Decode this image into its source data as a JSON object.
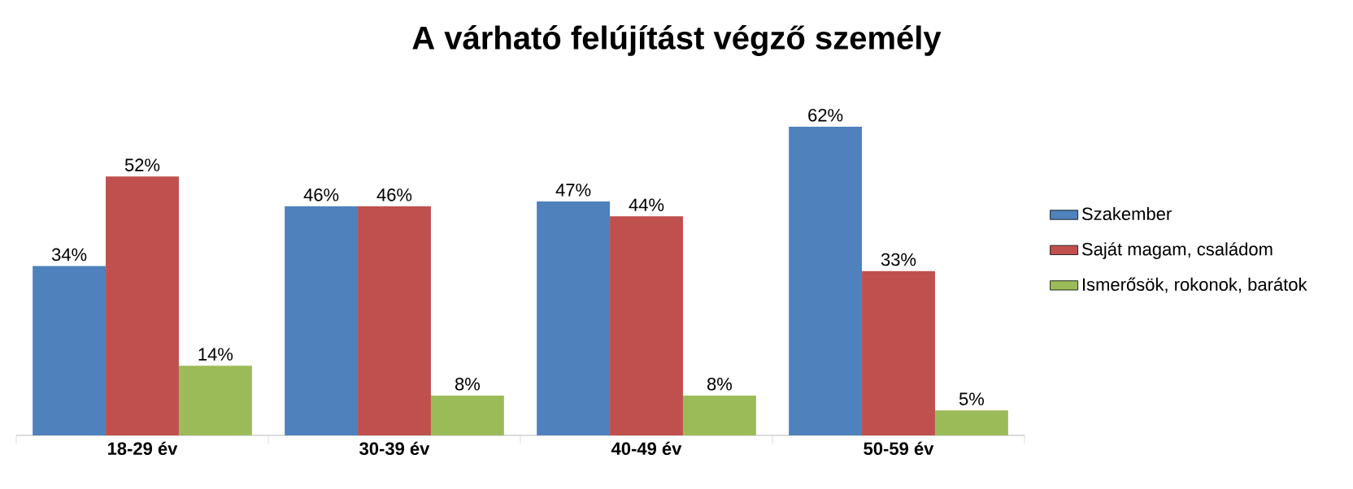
{
  "chart_data": {
    "type": "bar",
    "title": "A várható felújítást végző személy",
    "categories": [
      "18-29 év",
      "30-39 év",
      "40-49 év",
      "50-59 év"
    ],
    "series": [
      {
        "name": "Szakember",
        "color": "#4f81bd",
        "values": [
          34,
          46,
          47,
          62
        ],
        "value_labels": [
          "34%",
          "46%",
          "47%",
          "62%"
        ]
      },
      {
        "name": "Saját magam, családom",
        "color": "#c0504d",
        "values": [
          52,
          46,
          44,
          33
        ],
        "value_labels": [
          "52%",
          "46%",
          "44%",
          "33%"
        ]
      },
      {
        "name": "Ismerősök, rokonok, barátok",
        "color": "#9bbb59",
        "values": [
          14,
          8,
          8,
          5
        ],
        "value_labels": [
          "14%",
          "8%",
          "8%",
          "5%"
        ]
      }
    ],
    "legend": "right"
  }
}
